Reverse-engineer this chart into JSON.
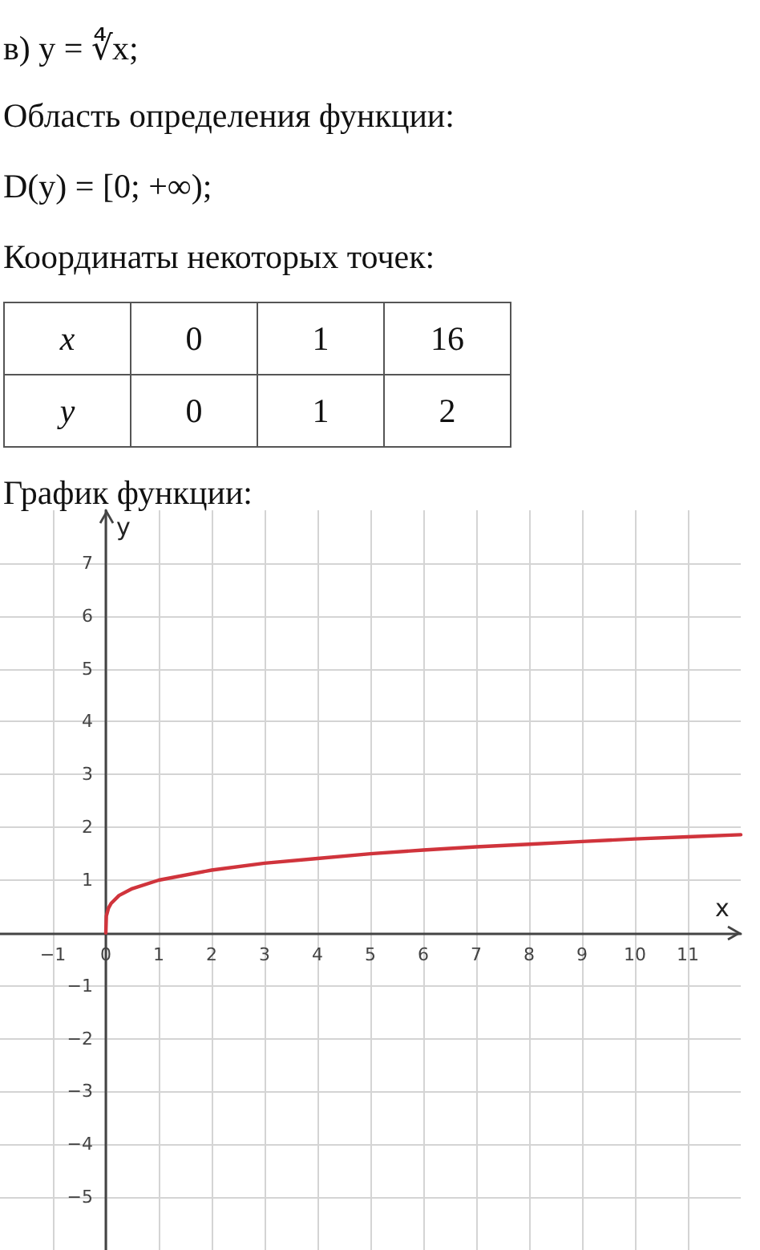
{
  "chart_data": {
    "type": "line",
    "title": "в) y = ∜x;",
    "annotations": [
      "Область определения функции:",
      "D(y) = [0; +∞);",
      "Координаты некоторых точек:",
      "x",
      "0",
      "1",
      "16",
      "y",
      "0",
      "1",
      "2",
      "График функции:"
    ],
    "xlabel": "x",
    "ylabel": "y",
    "x": [
      0,
      0.01,
      0.05,
      0.1,
      0.25,
      0.5,
      1,
      2,
      3,
      4,
      5,
      6,
      7,
      8,
      9,
      10,
      11,
      12
    ],
    "series": [
      {
        "color": "#d0343c",
        "values": [
          0,
          0.32,
          0.47,
          0.56,
          0.71,
          0.84,
          1,
          1.19,
          1.32,
          1.41,
          1.5,
          1.57,
          1.63,
          1.68,
          1.73,
          1.78,
          1.82,
          1.86
        ]
      }
    ],
    "xlim": [
      -2,
      12
    ],
    "xticks": [
      -1,
      0,
      1,
      2,
      3,
      4,
      5,
      6,
      7,
      8,
      9,
      10,
      11
    ],
    "ylim": [
      -6,
      8
    ],
    "yticks": [
      -5,
      -4,
      -3,
      -2,
      -1,
      1,
      2,
      3,
      4,
      5,
      6,
      7
    ],
    "grid": true,
    "marker": "none",
    "line_style": "solid"
  }
}
